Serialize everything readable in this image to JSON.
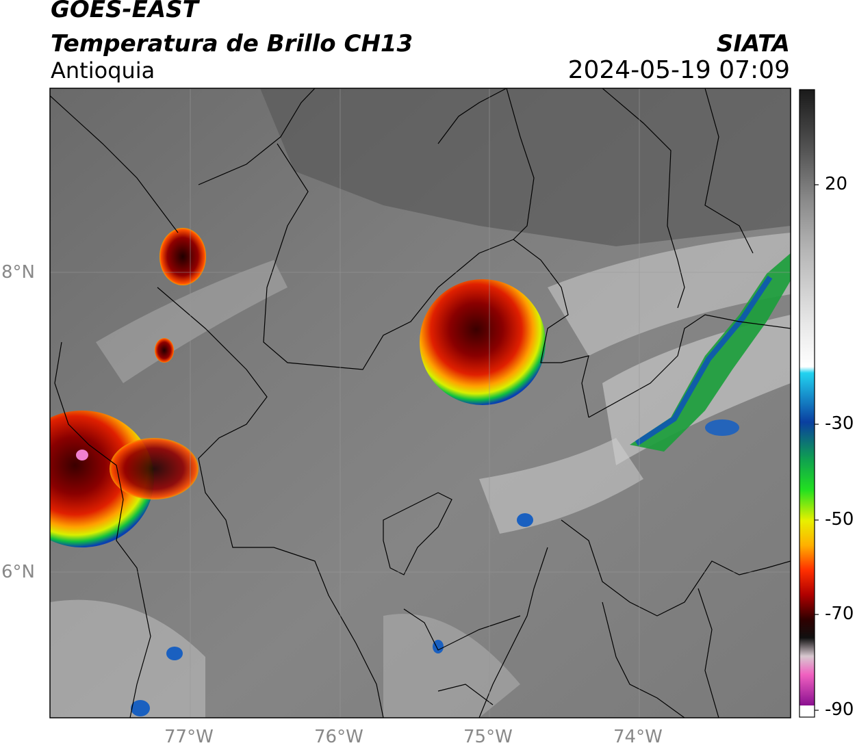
{
  "header": {
    "satellite": "GOES-EAST",
    "product": "Temperatura de Brillo CH13",
    "region": "Antioquia",
    "agency": "SIATA",
    "datetime": "2024-05-19 07:09"
  },
  "axes": {
    "lat_labels": [
      "8°N",
      "6°N"
    ],
    "lon_labels": [
      "77°W",
      "76°W",
      "75°W",
      "74°W"
    ]
  },
  "colorbar": {
    "labels": [
      "20",
      "-30",
      "-50",
      "-70",
      "-90"
    ],
    "stops": [
      "#1a1a1a",
      "#555555",
      "#8a8a8a",
      "#b5b5b5",
      "#e8e8e8",
      "#ffffff",
      "#22d3f0",
      "#0a3fa0",
      "#0fa050",
      "#22e020",
      "#e8f000",
      "#ffb000",
      "#ff3000",
      "#b00000",
      "#300000",
      "#101010",
      "#d8c8d0",
      "#f060c0",
      "#8a1090"
    ]
  },
  "colors": {
    "ir_background": "#7a7a7a",
    "border_lines": "#000000"
  }
}
